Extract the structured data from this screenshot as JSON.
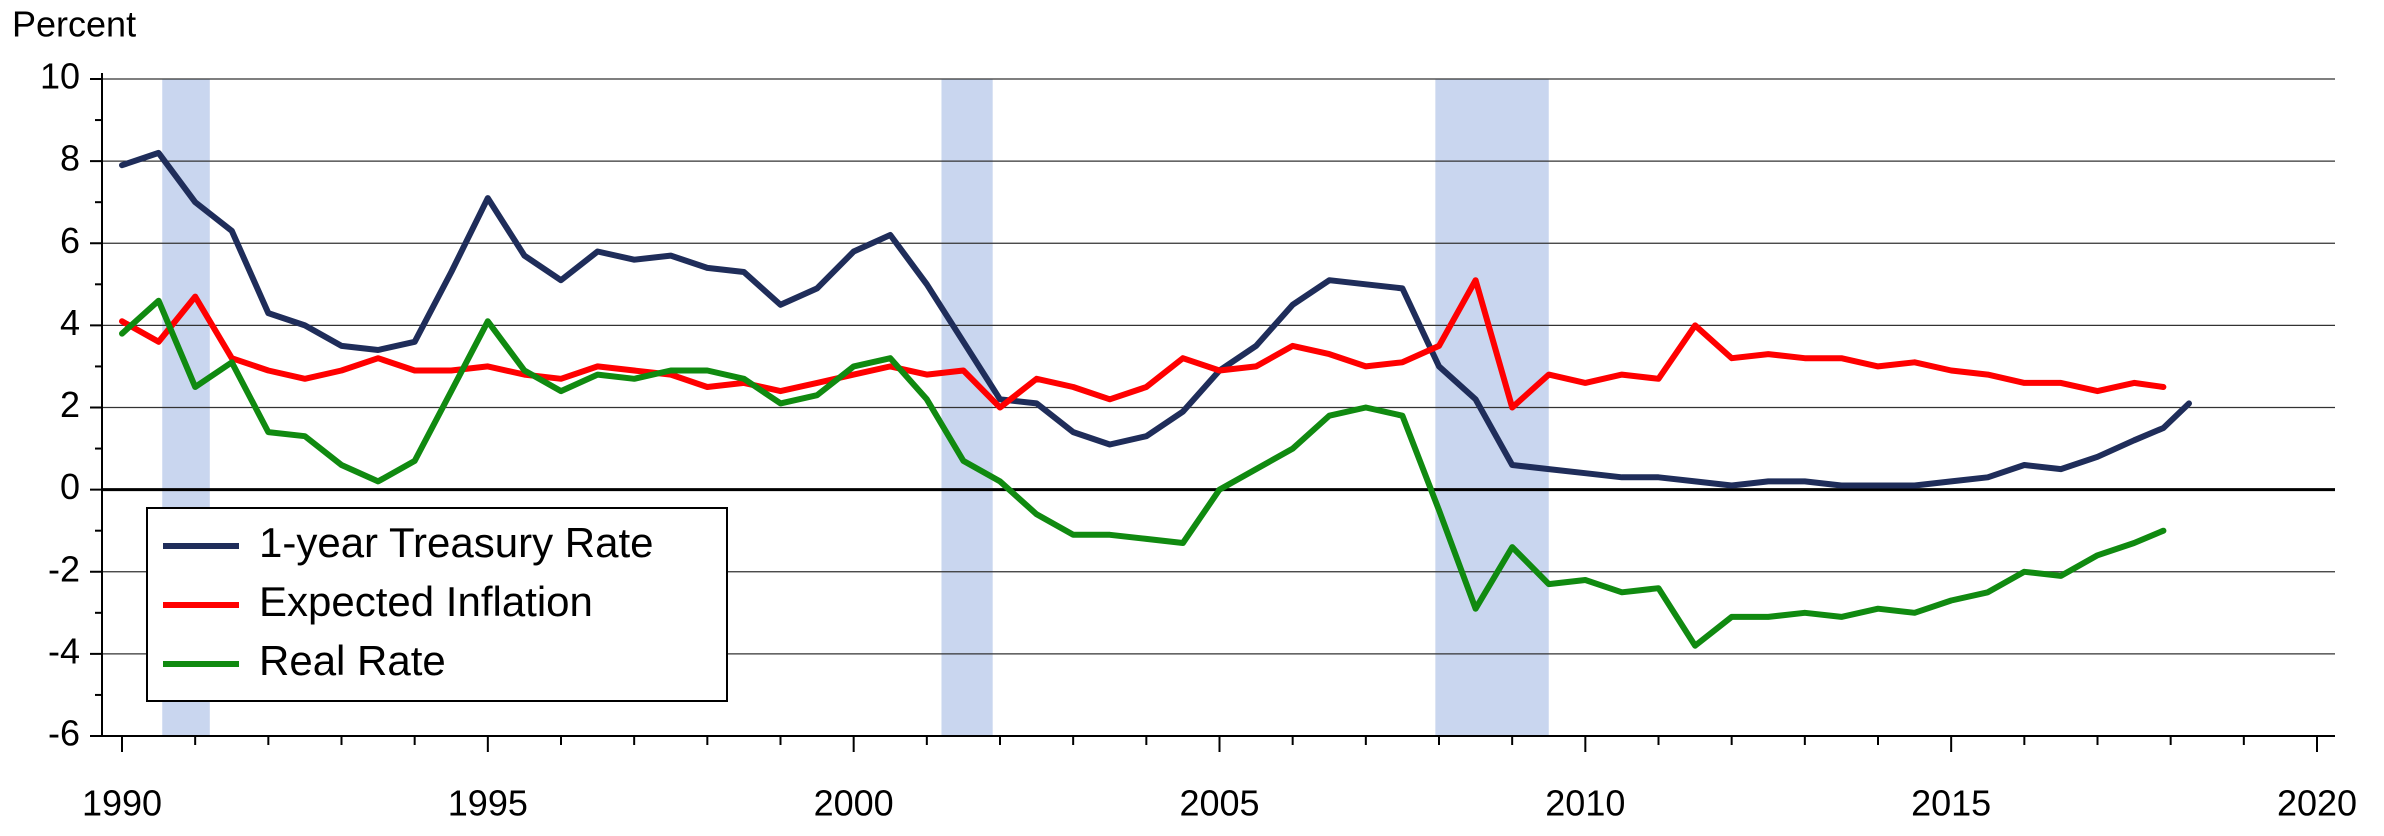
{
  "chart_data": {
    "type": "line",
    "ylabel": "Percent",
    "x": [
      1990.0,
      1990.5,
      1991.0,
      1991.5,
      1992.0,
      1992.5,
      1993.0,
      1993.5,
      1994.0,
      1994.5,
      1995.0,
      1995.5,
      1996.0,
      1996.5,
      1997.0,
      1997.5,
      1998.0,
      1998.5,
      1999.0,
      1999.5,
      2000.0,
      2000.5,
      2001.0,
      2001.5,
      2002.0,
      2002.5,
      2003.0,
      2003.5,
      2004.0,
      2004.5,
      2005.0,
      2005.5,
      2006.0,
      2006.5,
      2007.0,
      2007.5,
      2008.0,
      2008.5,
      2009.0,
      2009.5,
      2010.0,
      2010.5,
      2011.0,
      2011.5,
      2012.0,
      2012.5,
      2013.0,
      2013.5,
      2014.0,
      2014.5,
      2015.0,
      2015.5,
      2016.0,
      2016.5,
      2017.0,
      2017.5,
      2017.9,
      2018.25
    ],
    "series": [
      {
        "name": "1-year Treasury Rate",
        "color": "#1f2d5a",
        "values": [
          7.9,
          8.2,
          7.0,
          6.3,
          4.3,
          4.0,
          3.5,
          3.4,
          3.6,
          5.3,
          7.1,
          5.7,
          5.1,
          5.8,
          5.6,
          5.7,
          5.4,
          5.3,
          4.5,
          4.9,
          5.8,
          6.2,
          5.0,
          3.6,
          2.2,
          2.1,
          1.4,
          1.1,
          1.3,
          1.9,
          2.9,
          3.5,
          4.5,
          5.1,
          5.0,
          4.9,
          3.0,
          2.2,
          0.6,
          0.5,
          0.4,
          0.3,
          0.3,
          0.2,
          0.1,
          0.2,
          0.2,
          0.1,
          0.1,
          0.1,
          0.2,
          0.3,
          0.6,
          0.5,
          0.8,
          1.2,
          1.5,
          2.1
        ]
      },
      {
        "name": "Expected Inflation",
        "color": "#ff0000",
        "values": [
          4.1,
          3.6,
          4.7,
          3.2,
          2.9,
          2.7,
          2.9,
          3.2,
          2.9,
          2.9,
          3.0,
          2.8,
          2.7,
          3.0,
          2.9,
          2.8,
          2.5,
          2.6,
          2.4,
          2.6,
          2.8,
          3.0,
          2.8,
          2.9,
          2.0,
          2.7,
          2.5,
          2.2,
          2.5,
          3.2,
          2.9,
          3.0,
          3.5,
          3.3,
          3.0,
          3.1,
          3.5,
          5.1,
          2.0,
          2.8,
          2.6,
          2.8,
          2.7,
          4.0,
          3.2,
          3.3,
          3.2,
          3.2,
          3.0,
          3.1,
          2.9,
          2.8,
          2.6,
          2.6,
          2.4,
          2.6,
          2.5,
          null
        ]
      },
      {
        "name": "Real Rate",
        "color": "#108a10",
        "values": [
          3.8,
          4.6,
          2.5,
          3.1,
          1.4,
          1.3,
          0.6,
          0.2,
          0.7,
          2.4,
          4.1,
          2.9,
          2.4,
          2.8,
          2.7,
          2.9,
          2.9,
          2.7,
          2.1,
          2.3,
          3.0,
          3.2,
          2.2,
          0.7,
          0.2,
          -0.6,
          -1.1,
          -1.1,
          -1.2,
          -1.3,
          0.0,
          0.5,
          1.0,
          1.8,
          2.0,
          1.8,
          -0.5,
          -2.9,
          -1.4,
          -2.3,
          -2.2,
          -2.5,
          -2.4,
          -3.8,
          -3.1,
          -3.1,
          -3.0,
          -3.1,
          -2.9,
          -3.0,
          -2.7,
          -2.5,
          -2.0,
          -2.1,
          -1.6,
          -1.3,
          -1.0,
          null
        ]
      }
    ],
    "recessions": [
      [
        1990.55,
        1991.2
      ],
      [
        2001.2,
        2001.9
      ],
      [
        2007.95,
        2009.5
      ]
    ],
    "xlim": [
      1990,
      2020
    ],
    "xticks": [
      1990,
      1995,
      2000,
      2005,
      2010,
      2015,
      2020
    ],
    "ylim": [
      -6,
      10
    ],
    "yticks": [
      -6,
      -4,
      -2,
      0,
      2,
      4,
      6,
      8,
      10
    ],
    "grid": true,
    "legend": "lower left"
  }
}
